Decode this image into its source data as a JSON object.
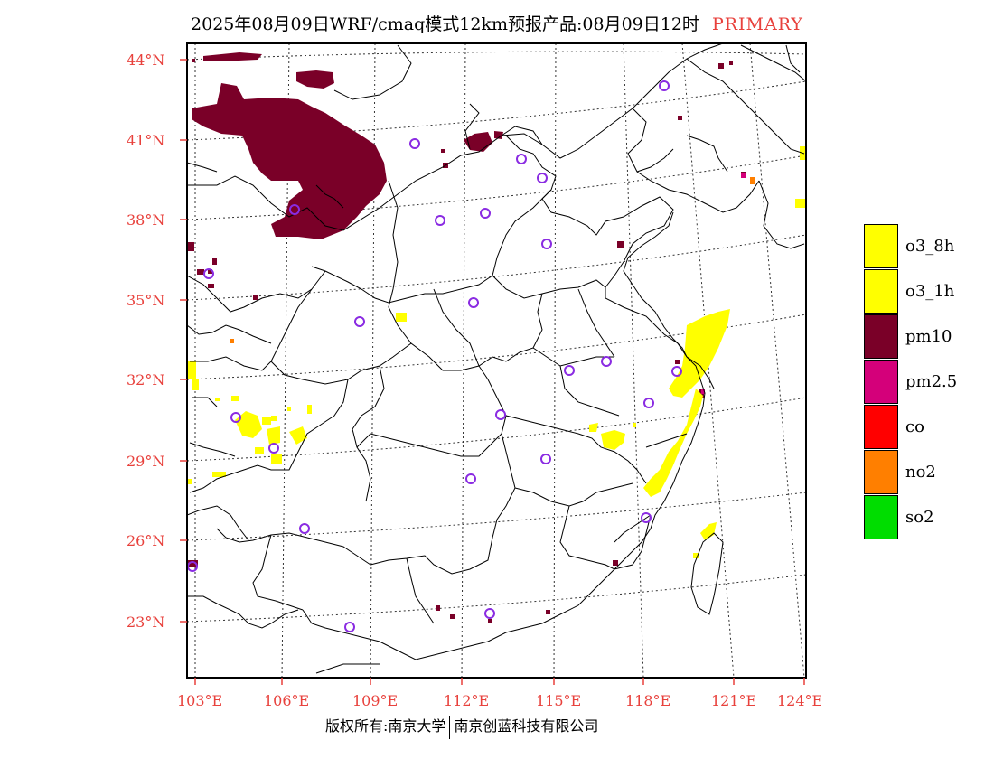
{
  "title": {
    "main": "2025年08月09日WRF/cmaq模式12km预报产品:08月09日12时",
    "tag": "PRIMARY"
  },
  "axes": {
    "lat_labels": [
      "44°N",
      "41°N",
      "38°N",
      "35°N",
      "32°N",
      "29°N",
      "26°N",
      "23°N"
    ],
    "lon_labels": [
      "103°E",
      "106°E",
      "109°E",
      "112°E",
      "115°E",
      "118°E",
      "121°E",
      "124°E"
    ]
  },
  "legend": [
    {
      "label": "o3_8h",
      "color": "#ffff00"
    },
    {
      "label": "o3_1h",
      "color": "#ffff00"
    },
    {
      "label": "pm10",
      "color": "#7a0028"
    },
    {
      "label": "pm2.5",
      "color": "#d4007a"
    },
    {
      "label": "co",
      "color": "#ff0000"
    },
    {
      "label": "no2",
      "color": "#ff7f00"
    },
    {
      "label": "so2",
      "color": "#00dd00"
    }
  ],
  "colors": {
    "accent": "#e8413c",
    "station": "#8a2be2",
    "pm10": "#7a0028",
    "o3": "#ffff00",
    "pm25": "#d4007a",
    "no2": "#ff7f00"
  },
  "footer": {
    "left": "版权所有:南京大学",
    "right": "南京创蓝科技有限公司"
  }
}
